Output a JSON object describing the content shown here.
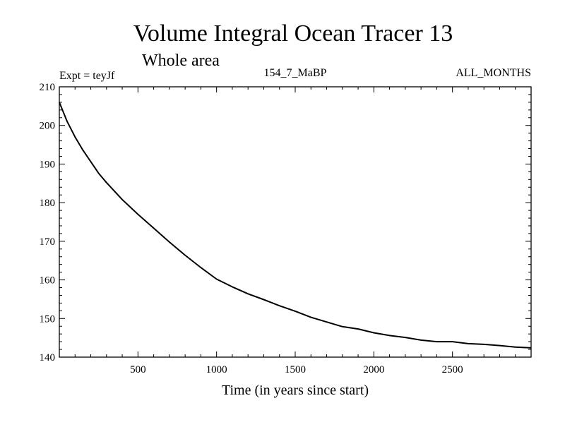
{
  "chart_data": {
    "type": "line",
    "title": "Volume Integral Ocean Tracer 13",
    "subtitle": "Whole area",
    "annotations": {
      "left": "Expt = teyJf",
      "center": "154_7_MaBP",
      "right": "ALL_MONTHS"
    },
    "xlabel": "Time (in years since start)",
    "ylabel": "",
    "xlim": [
      0,
      3000
    ],
    "ylim": [
      140,
      210
    ],
    "xticks": [
      500,
      1000,
      1500,
      2000,
      2500
    ],
    "yticks": [
      140,
      150,
      160,
      170,
      180,
      190,
      200,
      210
    ],
    "grid": false,
    "line_color": "#000000",
    "series": [
      {
        "x": [
          0,
          50,
          100,
          150,
          200,
          250,
          300,
          400,
          500,
          600,
          700,
          800,
          900,
          1000,
          1100,
          1200,
          1300,
          1400,
          1500,
          1600,
          1700,
          1800,
          1900,
          2000,
          2100,
          2200,
          2300,
          2400,
          2500,
          2600,
          2700,
          2800,
          2900,
          3000
        ],
        "y": [
          206,
          201,
          197,
          193.6,
          190.6,
          187.6,
          185.2,
          180.8,
          177,
          173.4,
          169.8,
          166.4,
          163.2,
          160.2,
          158.2,
          156.4,
          154.9,
          153.3,
          151.9,
          150.3,
          149.1,
          147.9,
          147.3,
          146.3,
          145.6,
          145.1,
          144.4,
          144.0,
          144.0,
          143.5,
          143.3,
          143.0,
          142.6,
          142.4
        ]
      }
    ]
  }
}
